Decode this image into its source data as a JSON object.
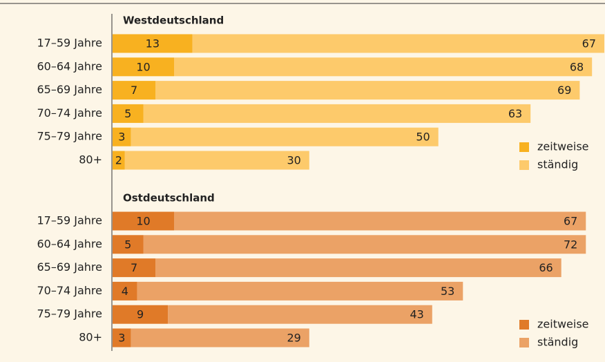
{
  "chart_data": [
    {
      "type": "bar",
      "title": "Westdeutschland",
      "categories": [
        "17–59 Jahre",
        "60–64 Jahre",
        "65–69 Jahre",
        "70–74 Jahre",
        "75–79 Jahre",
        "80+"
      ],
      "series": [
        {
          "name": "zeitweise",
          "color": "#f8b120",
          "values": [
            13,
            10,
            7,
            5,
            3,
            2
          ]
        },
        {
          "name": "ständig",
          "color": "#fdca6b",
          "values": [
            67,
            68,
            69,
            63,
            50,
            30
          ]
        }
      ]
    },
    {
      "type": "bar",
      "title": "Ostdeutschland",
      "categories": [
        "17–59 Jahre",
        "60–64 Jahre",
        "65–69 Jahre",
        "70–74 Jahre",
        "75–79 Jahre",
        "80+"
      ],
      "series": [
        {
          "name": "zeitweise",
          "color": "#e07a28",
          "values": [
            10,
            5,
            7,
            4,
            9,
            3
          ]
        },
        {
          "name": "ständig",
          "color": "#eba266",
          "values": [
            67,
            72,
            66,
            53,
            43,
            29
          ]
        }
      ]
    }
  ]
}
